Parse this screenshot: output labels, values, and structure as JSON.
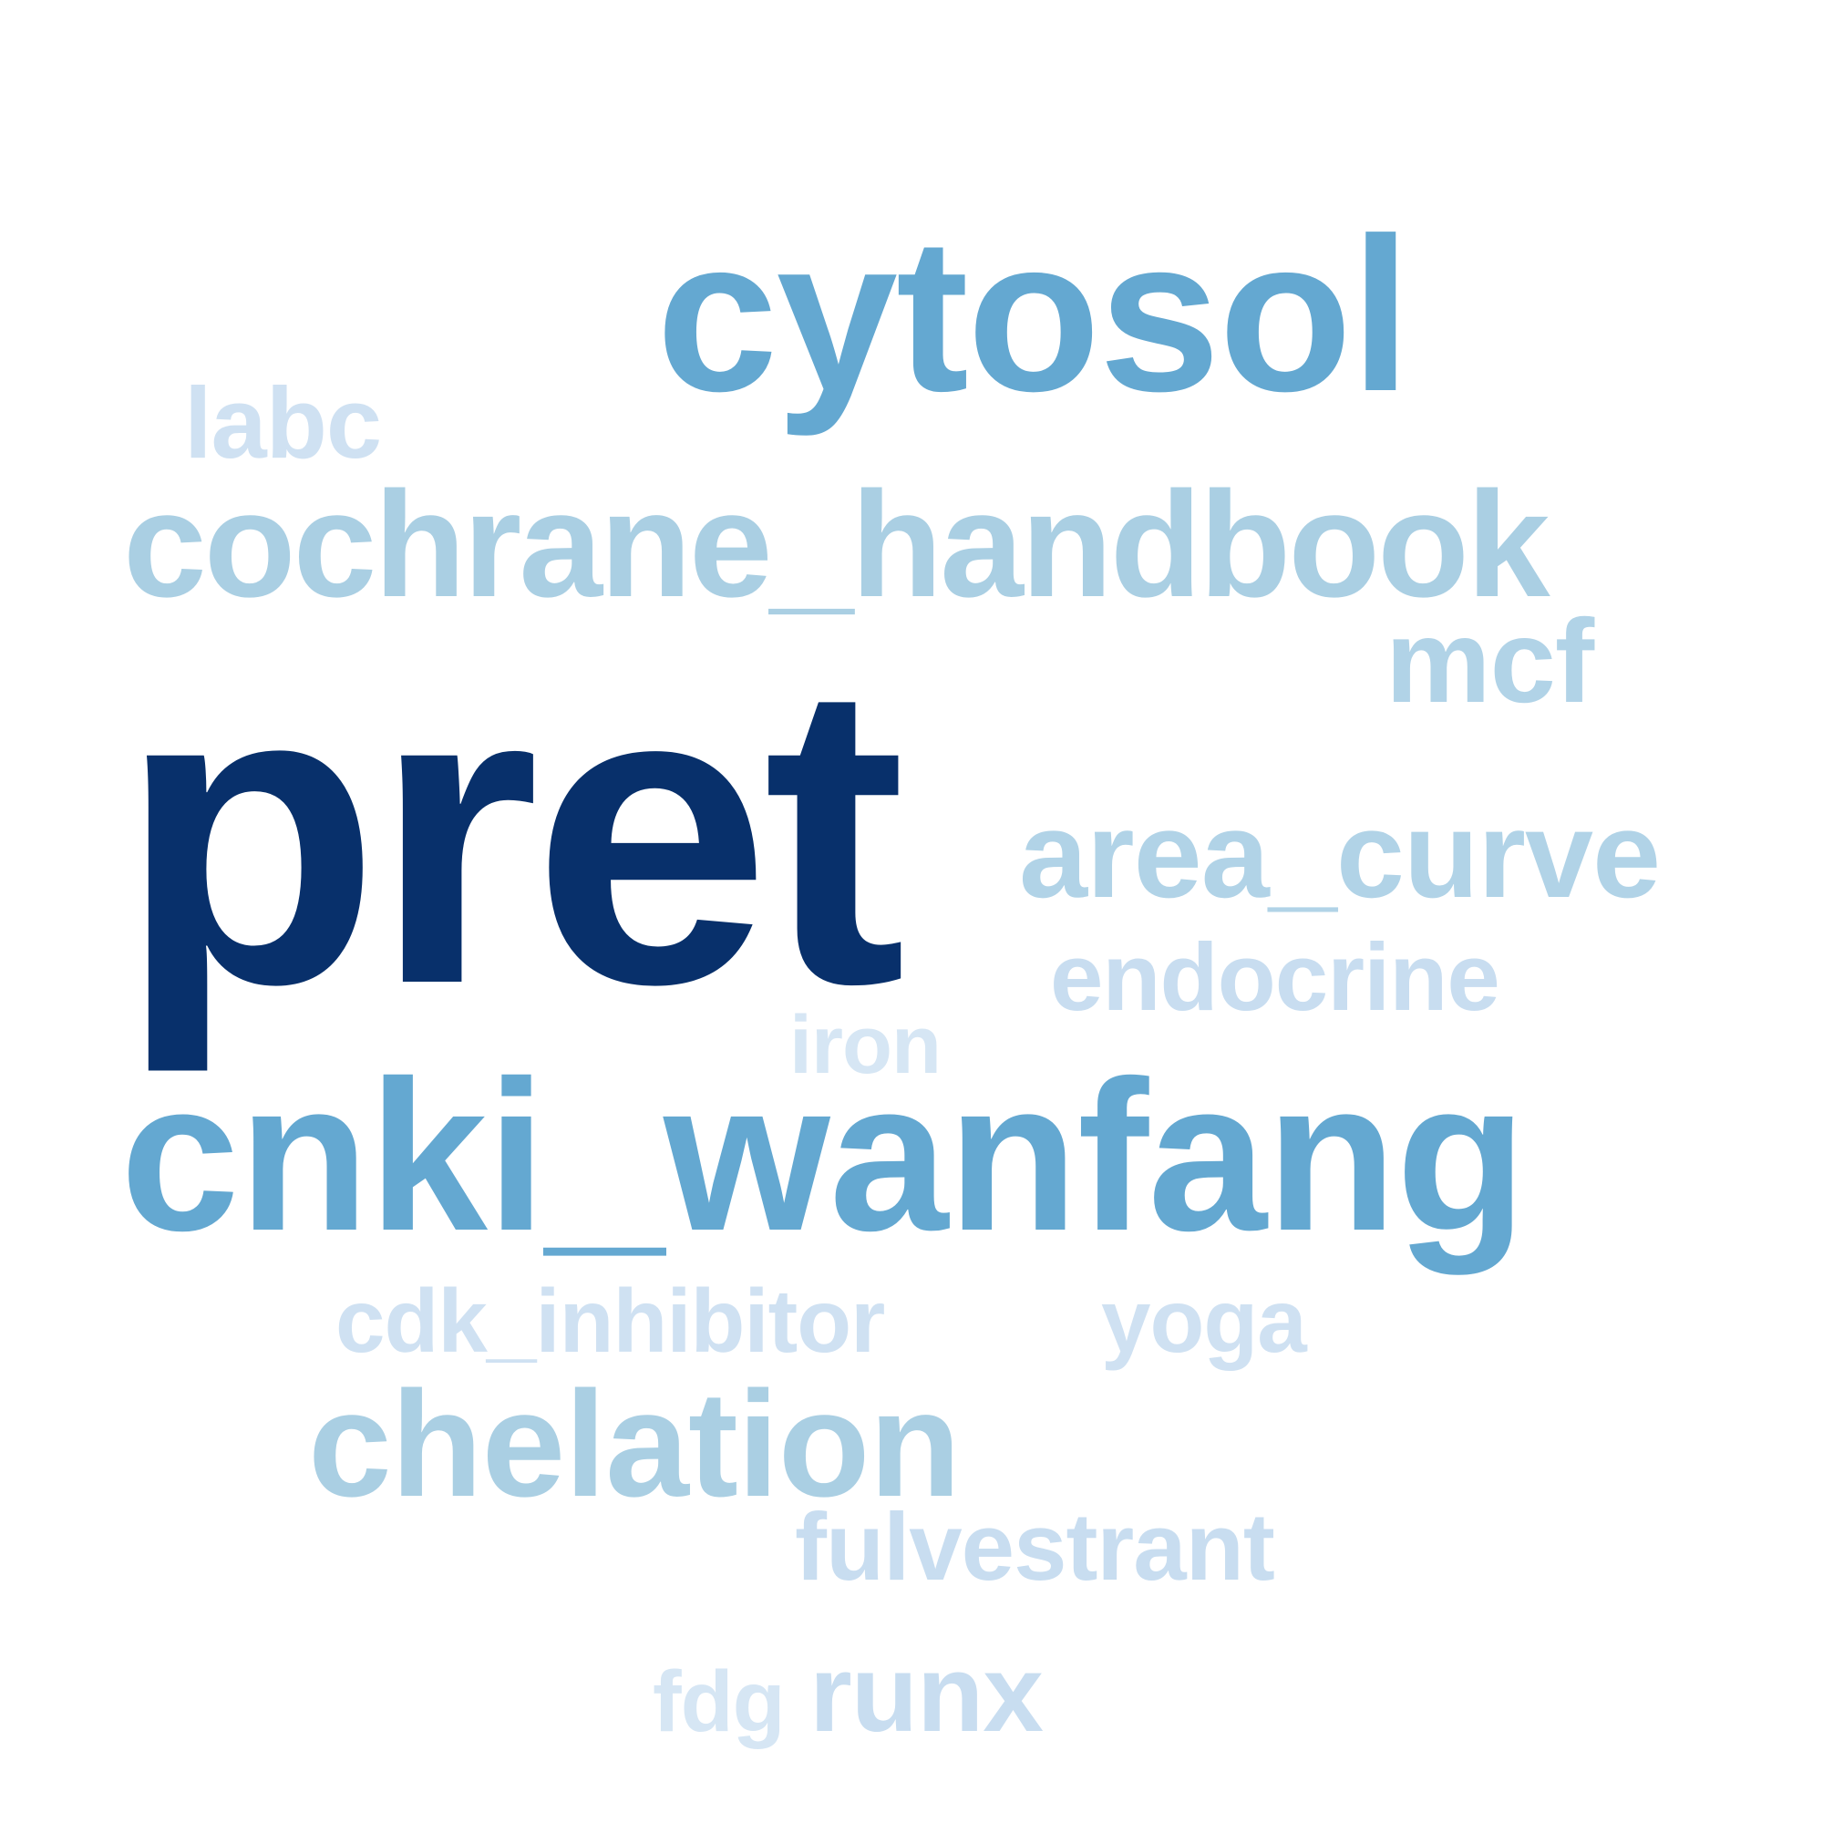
{
  "word_cloud": {
    "words": [
      {
        "text": "pret",
        "color": "#08306b"
      },
      {
        "text": "cytosol",
        "color": "#64a8d1"
      },
      {
        "text": "cnki_wanfang",
        "color": "#64a8d1"
      },
      {
        "text": "cochrane_handbook",
        "color": "#aacfe3"
      },
      {
        "text": "area_curve",
        "color": "#b1d3e7"
      },
      {
        "text": "chelation",
        "color": "#aacfe3"
      },
      {
        "text": "mcf",
        "color": "#b1d3e7"
      },
      {
        "text": "endocrine",
        "color": "#c8ddf0"
      },
      {
        "text": "fulvestrant",
        "color": "#c8ddf0"
      },
      {
        "text": "runx",
        "color": "#c8ddf0"
      },
      {
        "text": "cdk_inhibitor",
        "color": "#cfe1f2"
      },
      {
        "text": "yoga",
        "color": "#cfe1f2"
      },
      {
        "text": "labc",
        "color": "#cfe1f2"
      },
      {
        "text": "iron",
        "color": "#d6e6f4"
      },
      {
        "text": "fdg",
        "color": "#d6e6f4"
      }
    ]
  }
}
